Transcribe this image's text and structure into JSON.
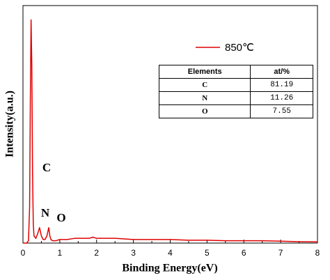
{
  "chart_data": {
    "type": "line",
    "xlabel": "Binding Energy(eV)",
    "ylabel": "Intensity(a.u.)",
    "x": [
      0,
      0.1,
      0.15,
      0.18,
      0.2,
      0.22,
      0.24,
      0.26,
      0.28,
      0.3,
      0.35,
      0.4,
      0.45,
      0.5,
      0.55,
      0.6,
      0.65,
      0.7,
      0.73,
      0.76,
      0.8,
      0.9,
      1.0,
      1.2,
      1.4,
      1.6,
      1.8,
      1.9,
      2.0,
      2.2,
      2.5,
      3.0,
      3.5,
      4.0,
      4.5,
      5.0,
      5.5,
      6.0,
      6.5,
      7.0,
      7.5,
      8.0
    ],
    "series": [
      {
        "name": "850℃",
        "color": "#e00000",
        "values": [
          0,
          0,
          1,
          15,
          60,
          94,
          75,
          30,
          8,
          3,
          2,
          4,
          6.5,
          3,
          1.5,
          1.5,
          3,
          6.5,
          3,
          1.5,
          1,
          1,
          1.5,
          1.5,
          2,
          2,
          2,
          2.5,
          2,
          2,
          2,
          1.5,
          1.5,
          1.5,
          1.2,
          1.2,
          1,
          1,
          1,
          0.8,
          0.6,
          0.5
        ]
      }
    ],
    "xlim": [
      0,
      8
    ],
    "xticks": [
      0,
      1,
      2,
      3,
      4,
      5,
      6,
      7,
      8
    ],
    "ylim": [
      0,
      100
    ],
    "legend": "upper right",
    "annotations": [
      "C",
      "N",
      "O"
    ],
    "inset_table": {
      "header": [
        "Elements",
        "at/%"
      ],
      "rows": [
        [
          "C",
          "81.19"
        ],
        [
          "N",
          "11.26"
        ],
        [
          "O",
          "7.55"
        ]
      ]
    }
  }
}
